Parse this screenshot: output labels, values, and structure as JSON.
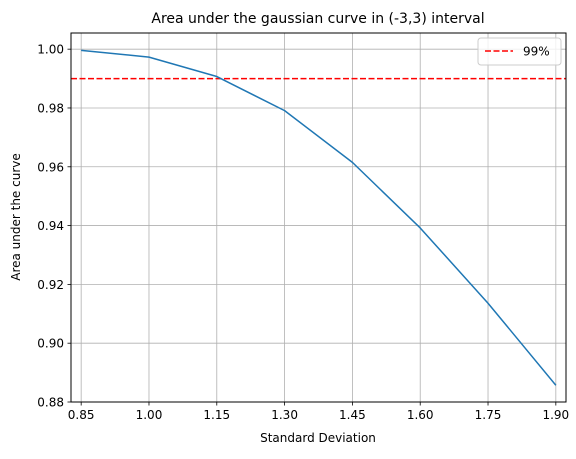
{
  "chart_data": {
    "type": "line",
    "title": "Area under the gaussian curve in (-3,3) interval",
    "xlabel": "Standard Deviation",
    "ylabel": "Area under the curve",
    "x": [
      0.85,
      1.0,
      1.15,
      1.3,
      1.45,
      1.6,
      1.75,
      1.9
    ],
    "xticks": [
      "0.85",
      "1.00",
      "1.15",
      "1.30",
      "1.45",
      "1.60",
      "1.75",
      "1.90"
    ],
    "yticks": [
      "0.88",
      "0.90",
      "0.92",
      "0.94",
      "0.96",
      "0.98",
      "1.00"
    ],
    "ytick_values": [
      0.88,
      0.9,
      0.92,
      0.94,
      0.96,
      0.98,
      1.0
    ],
    "xlim": [
      0.8275,
      1.9225
    ],
    "ylim": [
      0.88,
      1.0055
    ],
    "series": [
      {
        "values": [
          0.9996,
          0.9973,
          0.9907,
          0.9791,
          0.9615,
          0.9392,
          0.9136,
          0.8857
        ],
        "color": "#1f77b4",
        "style": "solid"
      }
    ],
    "reference_lines": [
      {
        "name": "99%",
        "y": 0.99,
        "color": "#ff0000",
        "style": "dashed"
      }
    ],
    "legend": {
      "position": "top-right",
      "entries": [
        "99%"
      ]
    },
    "grid": true
  }
}
